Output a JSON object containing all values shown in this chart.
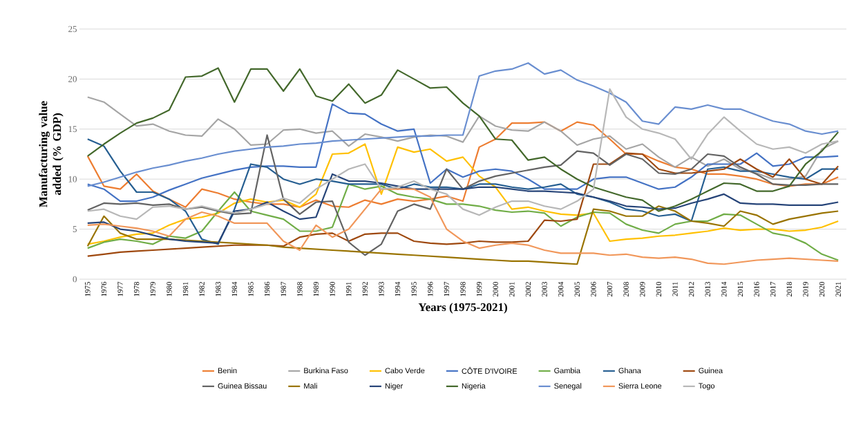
{
  "chart_data": {
    "type": "line",
    "xlabel": "Years (1975-2021)",
    "ylabel": "Manufacturing value added (% GDP)",
    "categories": [
      "1975",
      "1976",
      "1977",
      "1978",
      "1979",
      "1980",
      "1981",
      "1982",
      "1983",
      "1984",
      "1985",
      "1986",
      "1987",
      "1988",
      "1989",
      "1990",
      "1991",
      "1992",
      "1993",
      "1994",
      "1995",
      "1996",
      "1997",
      "1998",
      "1999",
      "2000",
      "2001",
      "2002",
      "2003",
      "2004",
      "2005",
      "2006",
      "2007",
      "2008",
      "2009",
      "2010",
      "2011",
      "2012",
      "2013",
      "2014",
      "2015",
      "2016",
      "2017",
      "2018",
      "2019",
      "2020",
      "2021"
    ],
    "ylim": [
      0,
      25
    ],
    "yticks": [
      0,
      5,
      10,
      15,
      20,
      25
    ],
    "grid": "y",
    "legend": "bottom",
    "marker": "none",
    "line_style": "solid",
    "series": [
      {
        "name": "Benin",
        "color": "#ed7d31",
        "values": [
          12.3,
          9.3,
          9.0,
          10.5,
          8.8,
          8.0,
          7.2,
          9.0,
          8.6,
          8.0,
          7.7,
          7.5,
          7.5,
          7.2,
          7.9,
          7.3,
          7.2,
          7.9,
          7.5,
          8.0,
          7.8,
          8.0,
          8.3,
          7.8,
          13.2,
          14.0,
          15.6,
          15.6,
          15.7,
          14.8,
          15.7,
          15.4,
          14.0,
          12.5,
          12.5,
          11.8,
          11.2,
          11.0,
          10.5,
          10.5,
          10.3,
          10.0,
          9.5,
          9.3,
          9.5,
          9.5,
          10.2
        ]
      },
      {
        "name": "Burkina Faso",
        "color": "#a5a5a5",
        "values": [
          18.2,
          17.7,
          16.5,
          15.3,
          15.5,
          14.8,
          14.4,
          14.3,
          16.0,
          15.0,
          13.4,
          13.5,
          14.9,
          15.0,
          14.6,
          14.8,
          13.3,
          14.5,
          14.2,
          13.8,
          14.2,
          14.4,
          14.3,
          13.7,
          16.3,
          15.3,
          14.9,
          14.8,
          15.7,
          14.8,
          13.4,
          14.0,
          14.3,
          13.0,
          13.5,
          12.2,
          11.2,
          12.2,
          11.3,
          12.0,
          11.0,
          10.6,
          10.0,
          10.0,
          10.3,
          13.0,
          13.8
        ]
      },
      {
        "name": "Cabo Verde",
        "color": "#ffc000",
        "values": [
          3.5,
          3.8,
          4.2,
          4.5,
          4.6,
          5.4,
          6.0,
          6.2,
          6.6,
          7.6,
          8.0,
          7.7,
          7.9,
          7.2,
          8.5,
          12.5,
          12.6,
          13.5,
          8.5,
          13.2,
          12.7,
          13.0,
          11.8,
          12.2,
          10.3,
          9.2,
          7.0,
          7.2,
          6.8,
          6.5,
          6.4,
          6.6,
          3.8,
          4.0,
          4.1,
          4.3,
          4.4,
          4.6,
          4.8,
          5.1,
          4.9,
          5.0,
          5.0,
          4.8,
          4.9,
          5.2,
          5.8
        ]
      },
      {
        "name": "CÔTE D'IVOIRE",
        "color": "#4472c4",
        "values": [
          9.5,
          9.0,
          7.8,
          7.8,
          8.2,
          8.9,
          9.5,
          10.1,
          10.5,
          10.9,
          11.2,
          11.3,
          11.3,
          11.2,
          11.2,
          17.5,
          16.6,
          16.5,
          15.5,
          14.8,
          15.0,
          9.6,
          11.0,
          10.2,
          10.8,
          11.0,
          10.8,
          10.0,
          9.0,
          9.0,
          9.0,
          10.0,
          10.2,
          10.2,
          9.6,
          9.0,
          9.2,
          10.2,
          11.5,
          11.5,
          11.5,
          12.6,
          11.3,
          11.5,
          12.2,
          12.2,
          12.3
        ]
      },
      {
        "name": "Gambia",
        "color": "#70ad47",
        "values": [
          3.1,
          3.7,
          4.0,
          3.8,
          3.5,
          4.3,
          4.1,
          4.8,
          6.8,
          8.7,
          6.8,
          6.4,
          6.0,
          4.8,
          4.8,
          5.2,
          9.5,
          9.0,
          9.3,
          8.5,
          8.2,
          8.0,
          7.5,
          7.5,
          7.3,
          6.9,
          6.7,
          6.8,
          6.6,
          5.3,
          6.2,
          6.7,
          6.6,
          5.5,
          4.9,
          4.6,
          5.5,
          5.8,
          5.8,
          6.5,
          6.4,
          5.5,
          4.6,
          4.3,
          3.6,
          2.5,
          1.9
        ]
      },
      {
        "name": "Ghana",
        "color": "#255e91",
        "values": [
          14.0,
          13.3,
          10.8,
          8.7,
          8.7,
          8.0,
          6.8,
          4.0,
          3.5,
          7.0,
          11.5,
          11.2,
          10.0,
          9.5,
          10.0,
          9.8,
          9.5,
          9.5,
          9.5,
          9.0,
          9.5,
          9.2,
          9.2,
          9.0,
          9.5,
          9.5,
          9.2,
          9.0,
          9.2,
          9.5,
          8.5,
          8.2,
          7.7,
          7.0,
          6.8,
          6.3,
          6.5,
          5.8,
          11.0,
          11.2,
          10.8,
          10.8,
          10.5,
          10.2,
          10.0,
          11.0,
          11.0
        ]
      },
      {
        "name": "Guinea",
        "color": "#9e480e",
        "values": [
          2.3,
          2.5,
          2.7,
          2.8,
          2.9,
          3.0,
          3.1,
          3.2,
          3.3,
          3.4,
          3.4,
          3.4,
          3.3,
          4.2,
          4.5,
          4.6,
          3.8,
          4.5,
          4.6,
          4.6,
          3.8,
          3.6,
          3.5,
          3.6,
          3.8,
          3.7,
          3.7,
          3.8,
          5.9,
          5.8,
          6.0,
          11.5,
          11.5,
          12.6,
          12.5,
          11.0,
          10.6,
          10.6,
          10.8,
          11.0,
          12.0,
          11.0,
          10.2,
          12.0,
          10.0,
          9.5,
          11.3
        ]
      },
      {
        "name": "Guinea Bissau",
        "color": "#636363",
        "values": [
          6.9,
          7.6,
          7.5,
          7.6,
          7.4,
          7.5,
          7.0,
          7.2,
          6.8,
          6.5,
          6.6,
          14.4,
          8.0,
          6.5,
          7.7,
          7.8,
          3.7,
          2.4,
          3.5,
          6.8,
          7.5,
          7.0,
          11.0,
          9.0,
          9.8,
          10.3,
          10.6,
          10.9,
          11.2,
          11.4,
          12.8,
          12.6,
          11.4,
          12.5,
          12.0,
          10.6,
          10.5,
          11.0,
          12.5,
          12.3,
          11.2,
          10.5,
          9.5,
          9.4,
          9.4,
          9.5,
          9.5
        ]
      },
      {
        "name": "Mali",
        "color": "#997300",
        "values": [
          3.3,
          6.3,
          4.6,
          4.0,
          4.0,
          4.0,
          3.9,
          3.8,
          3.7,
          3.6,
          3.5,
          3.4,
          3.2,
          3.1,
          3.0,
          2.9,
          2.8,
          2.7,
          2.6,
          2.5,
          2.4,
          2.3,
          2.2,
          2.1,
          2.0,
          1.9,
          1.8,
          1.8,
          1.7,
          1.6,
          1.5,
          7.0,
          6.8,
          6.3,
          6.3,
          7.3,
          6.8,
          5.8,
          5.6,
          5.3,
          6.8,
          6.4,
          5.5,
          6.0,
          6.3,
          6.6,
          6.8
        ]
      },
      {
        "name": "Niger",
        "color": "#264478",
        "values": [
          5.6,
          5.7,
          5.0,
          4.8,
          4.4,
          4.0,
          3.8,
          3.7,
          3.6,
          6.8,
          7.0,
          7.7,
          6.8,
          6.0,
          6.2,
          10.5,
          9.8,
          9.8,
          9.6,
          9.3,
          9.0,
          9.0,
          9.0,
          9.0,
          9.2,
          9.2,
          9.0,
          8.8,
          8.8,
          8.7,
          8.6,
          8.2,
          7.8,
          7.3,
          7.2,
          7.0,
          7.1,
          7.6,
          8.0,
          8.5,
          7.6,
          7.5,
          7.5,
          7.4,
          7.4,
          7.4,
          7.7
        ]
      },
      {
        "name": "Nigeria",
        "color": "#43682b",
        "values": [
          12.3,
          13.5,
          14.6,
          15.6,
          16.1,
          16.9,
          20.2,
          20.3,
          21.1,
          17.7,
          21.0,
          21.0,
          18.8,
          21.0,
          18.3,
          17.8,
          19.5,
          17.6,
          18.4,
          20.9,
          20.0,
          19.1,
          19.2,
          17.6,
          16.3,
          14.0,
          13.9,
          11.9,
          12.2,
          11.0,
          10.0,
          9.2,
          8.7,
          8.2,
          7.9,
          6.8,
          7.3,
          8.0,
          8.8,
          9.6,
          9.5,
          8.8,
          8.8,
          9.3,
          11.5,
          12.8,
          14.7
        ]
      },
      {
        "name": "Senegal",
        "color": "#698ed0",
        "values": [
          9.3,
          9.7,
          10.2,
          10.7,
          11.1,
          11.4,
          11.8,
          12.1,
          12.5,
          12.8,
          13.0,
          13.2,
          13.3,
          13.5,
          13.6,
          13.8,
          13.9,
          14.0,
          14.1,
          14.2,
          14.3,
          14.3,
          14.4,
          14.4,
          20.3,
          20.8,
          21.0,
          21.6,
          20.5,
          20.9,
          19.9,
          19.3,
          18.6,
          17.7,
          15.8,
          15.5,
          17.2,
          17.0,
          17.4,
          17.0,
          17.0,
          16.4,
          15.8,
          15.5,
          14.8,
          14.5,
          14.8
        ]
      },
      {
        "name": "Sierra Leone",
        "color": "#f1975a",
        "values": [
          5.4,
          5.5,
          5.3,
          5.1,
          4.8,
          4.3,
          6.0,
          6.7,
          6.3,
          5.6,
          5.6,
          5.6,
          3.8,
          2.9,
          5.4,
          4.2,
          5.0,
          7.0,
          9.0,
          9.0,
          9.0,
          8.2,
          5.0,
          3.8,
          3.1,
          3.4,
          3.6,
          3.4,
          2.9,
          2.6,
          2.6,
          2.6,
          2.4,
          2.5,
          2.2,
          2.1,
          2.2,
          2.0,
          1.6,
          1.5,
          1.7,
          1.9,
          2.0,
          2.1,
          2.0,
          1.9,
          1.8
        ]
      },
      {
        "name": "Togo",
        "color": "#b7b7b7",
        "values": [
          6.8,
          7.0,
          6.3,
          6.0,
          7.2,
          7.3,
          7.0,
          7.3,
          6.9,
          6.6,
          7.0,
          7.5,
          8.1,
          7.6,
          9.0,
          10.0,
          11.0,
          11.5,
          9.0,
          9.2,
          9.8,
          9.0,
          8.5,
          7.0,
          6.4,
          7.2,
          7.8,
          7.8,
          7.3,
          7.0,
          7.8,
          9.0,
          19.0,
          16.2,
          15.0,
          14.6,
          14.0,
          12.0,
          14.5,
          16.2,
          14.8,
          13.5,
          13.0,
          13.2,
          12.6,
          13.5,
          13.8
        ]
      }
    ]
  }
}
